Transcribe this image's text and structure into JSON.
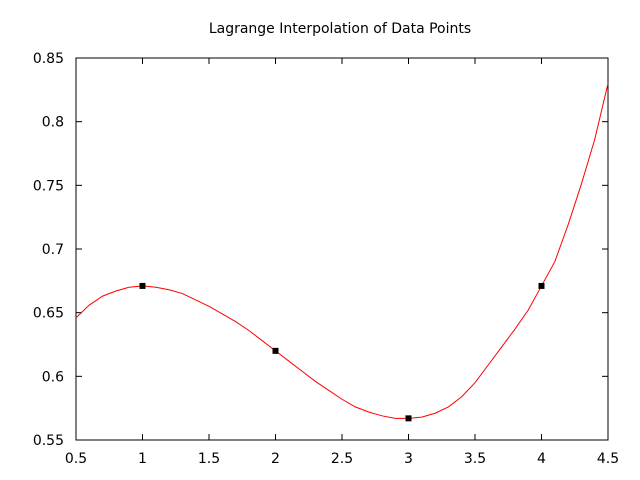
{
  "chart_data": {
    "type": "line",
    "title": "Lagrange Interpolation of Data Points",
    "xlabel": "",
    "ylabel": "",
    "xlim": [
      0.5,
      4.5
    ],
    "ylim": [
      0.55,
      0.85
    ],
    "grid": false,
    "x_ticks": [
      0.5,
      1,
      1.5,
      2,
      2.5,
      3,
      3.5,
      4,
      4.5
    ],
    "x_tick_labels": [
      "0.5",
      "1",
      "1.5",
      "2",
      "2.5",
      "3",
      "3.5",
      "4",
      "4.5"
    ],
    "y_ticks": [
      0.55,
      0.6,
      0.65,
      0.7,
      0.75,
      0.8,
      0.85
    ],
    "y_tick_labels": [
      "0.55",
      "0.6",
      "0.65",
      "0.7",
      "0.75",
      "0.8",
      "0.85"
    ],
    "series": [
      {
        "color": "#ff0000",
        "style": "line",
        "x": [
          0.5,
          0.6,
          0.7,
          0.8,
          0.9,
          1.0,
          1.1,
          1.2,
          1.3,
          1.4,
          1.5,
          1.6,
          1.7,
          1.8,
          1.9,
          2.0,
          2.1,
          2.2,
          2.3,
          2.4,
          2.5,
          2.6,
          2.7,
          2.8,
          2.9,
          3.0,
          3.1,
          3.2,
          3.3,
          3.4,
          3.5,
          3.6,
          3.7,
          3.8,
          3.9,
          4.0,
          4.1,
          4.2,
          4.3,
          4.4,
          4.5
        ],
        "values": [
          0.646,
          0.656,
          0.663,
          0.667,
          0.67,
          0.671,
          0.67,
          0.668,
          0.665,
          0.66,
          0.655,
          0.649,
          0.643,
          0.636,
          0.628,
          0.62,
          0.612,
          0.604,
          0.596,
          0.589,
          0.582,
          0.576,
          0.572,
          0.569,
          0.567,
          0.567,
          0.568,
          0.571,
          0.576,
          0.584,
          0.595,
          0.609,
          0.623,
          0.637,
          0.652,
          0.671,
          0.69,
          0.719,
          0.751,
          0.786,
          0.83
        ]
      },
      {
        "color": "#000000",
        "style": "points",
        "x": [
          1,
          2,
          3,
          4
        ],
        "values": [
          0.671,
          0.62,
          0.567,
          0.671
        ]
      }
    ]
  }
}
